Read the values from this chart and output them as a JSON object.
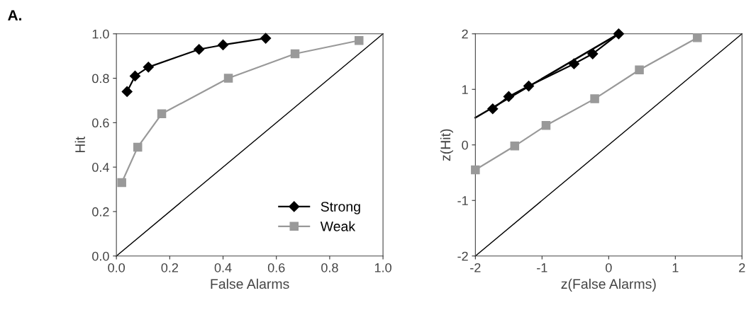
{
  "chart_data": [
    {
      "type": "line",
      "xlabel": "False Alarms",
      "ylabel": "Hit",
      "annotations": [
        "A."
      ],
      "xlim": [
        0,
        1
      ],
      "ylim": [
        0,
        1
      ],
      "xticks": [
        {
          "value": 0,
          "label": "0.0"
        },
        {
          "value": 0.2,
          "label": "0.2"
        },
        {
          "value": 0.4,
          "label": "0.4"
        },
        {
          "value": 0.6,
          "label": "0.6"
        },
        {
          "value": 0.8,
          "label": "0.8"
        },
        {
          "value": 1,
          "label": "1.0"
        }
      ],
      "yticks": [
        {
          "value": 0,
          "label": "0.0"
        },
        {
          "value": 0.2,
          "label": "0.2"
        },
        {
          "value": 0.4,
          "label": "0.4"
        },
        {
          "value": 0.6,
          "label": "0.6"
        },
        {
          "value": 0.8,
          "label": "0.8"
        },
        {
          "value": 1,
          "label": "1.0"
        }
      ],
      "grid": false,
      "legend": "bottom right",
      "series": [
        {
          "name": "Strong",
          "color": "#000000",
          "marker": "diamond",
          "x": [
            0.04,
            0.07,
            0.12,
            0.31,
            0.4,
            0.56
          ],
          "values": [
            0.74,
            0.81,
            0.85,
            0.93,
            0.95,
            0.98
          ]
        },
        {
          "name": "Weak",
          "color": "#999999",
          "marker": "square",
          "x": [
            0.02,
            0.08,
            0.17,
            0.42,
            0.67,
            0.91
          ],
          "values": [
            0.33,
            0.49,
            0.64,
            0.8,
            0.91,
            0.97
          ]
        },
        {
          "color": "#000000",
          "marker": "none",
          "x": [
            0,
            1
          ],
          "values": [
            0,
            1
          ]
        }
      ]
    },
    {
      "type": "line",
      "xlabel": "z(False Alarms)",
      "ylabel": "z(Hit)",
      "xlim": [
        -2,
        2
      ],
      "ylim": [
        -2,
        2
      ],
      "xticks": [
        {
          "value": -2,
          "label": "-2"
        },
        {
          "value": -1,
          "label": "-1"
        },
        0,
        1,
        2
      ],
      "yticks": [
        {
          "value": -2,
          "label": "-2"
        },
        {
          "value": -1,
          "label": "-1"
        },
        0,
        1,
        2
      ],
      "grid": false,
      "legend": false,
      "series": [
        {
          "color": "#000000",
          "marker": "diamond",
          "x": [
            -1.74,
            -1.5,
            -1.2,
            -0.52,
            -0.24,
            0.15
          ],
          "values": [
            0.65,
            0.87,
            1.06,
            1.46,
            1.64,
            2.0
          ]
        },
        {
          "color": "#000000",
          "marker": "none",
          "x": [
            -2,
            0.15
          ],
          "values": [
            0.49,
            2.0
          ]
        },
        {
          "color": "#999999",
          "marker": "square",
          "x": [
            -2.0,
            -1.41,
            -0.94,
            -0.21,
            0.46,
            1.33
          ],
          "values": [
            -0.45,
            -0.02,
            0.35,
            0.83,
            1.35,
            1.93
          ]
        },
        {
          "color": "#000000",
          "marker": "none",
          "x": [
            -2,
            2
          ],
          "values": [
            -2,
            2
          ]
        }
      ]
    }
  ]
}
